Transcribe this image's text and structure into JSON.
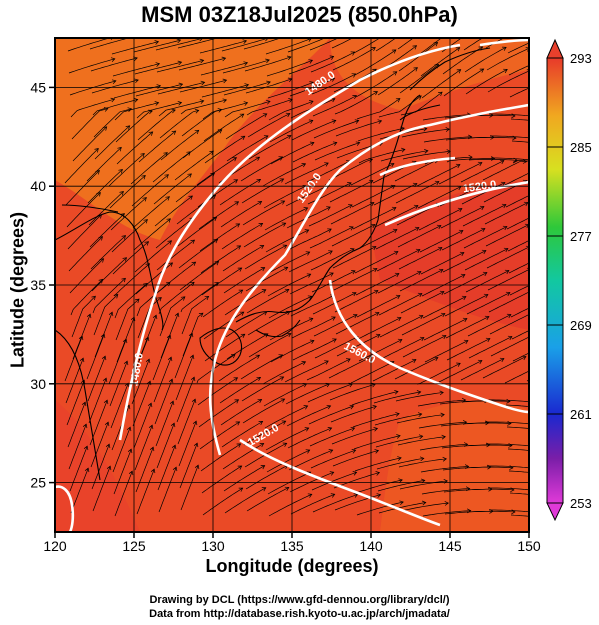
{
  "title": "MSM 03Z18Jul2025 (850.0hPa)",
  "x_label": "Longitude (degrees)",
  "y_label": "Latitude  (degrees)",
  "credits": {
    "line1": "Drawing by DCL (https://www.gfd-dennou.org/library/dcl/)",
    "line2": "Data from http://database.rish.kyoto-u.ac.jp/arch/jmadata/"
  },
  "map": {
    "lon_range": [
      120,
      150
    ],
    "lat_range": [
      22.5,
      47.5
    ],
    "lon_ticks": [
      "120",
      "125",
      "130",
      "135",
      "140",
      "145",
      "150"
    ],
    "lat_ticks": [
      "25",
      "30",
      "35",
      "40",
      "45"
    ]
  },
  "colorbar": {
    "tick_labels": [
      "293",
      "285",
      "277",
      "269",
      "261",
      "253"
    ],
    "range": [
      253,
      293
    ]
  },
  "contour_labels": [
    "1480.0",
    "1520.0",
    "1480.0",
    "1520.0",
    "1560.0",
    "1520.0"
  ],
  "colors": {
    "field_base": "#ea4a26",
    "field_warm": "#f0741e",
    "field_hot": "#e33a2a",
    "contour": "#ffffff",
    "streamline": "#000000"
  }
}
